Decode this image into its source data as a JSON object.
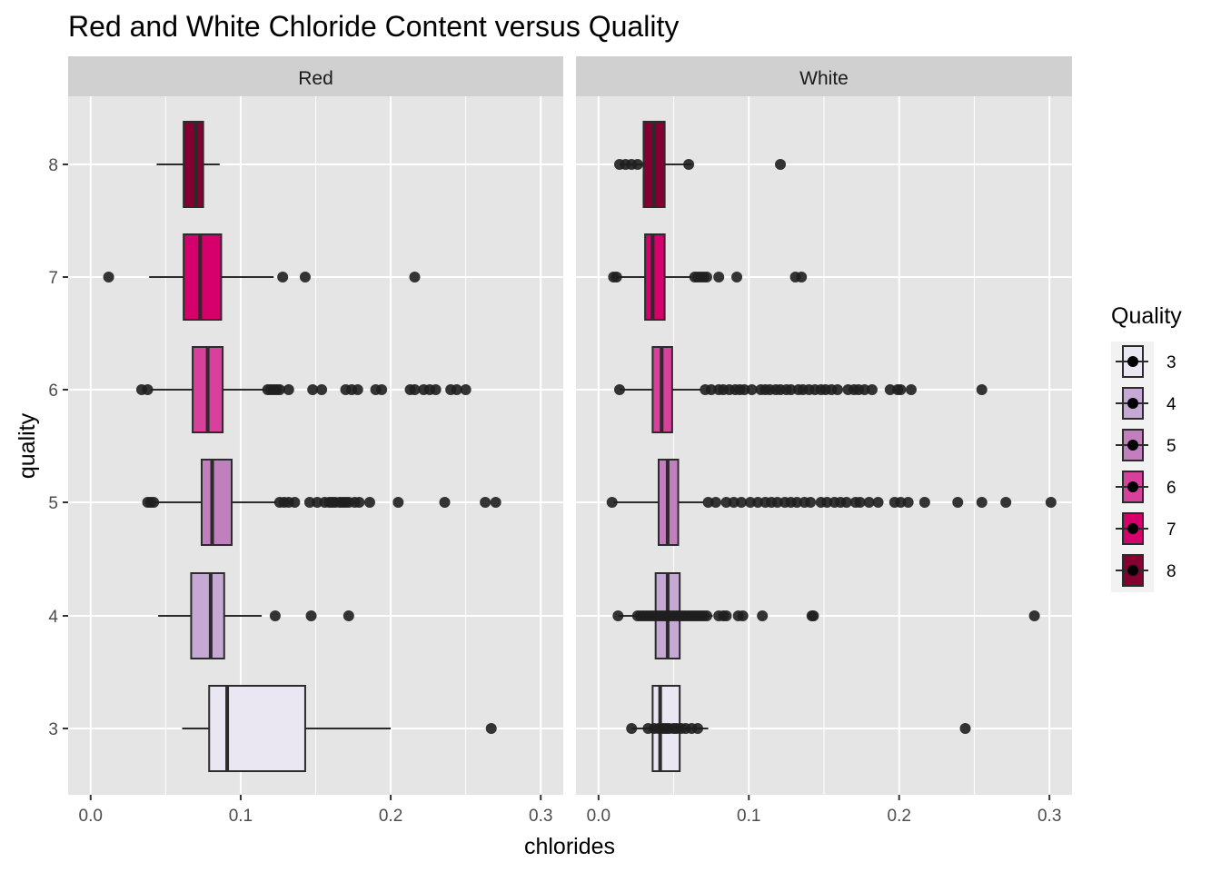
{
  "chart_data": {
    "type": "boxplot",
    "title": "Red and White Chloride Content versus Quality",
    "xlabel": "chlorides",
    "ylabel": "quality",
    "xlim": [
      -0.015,
      0.315
    ],
    "x_ticks": [
      0.0,
      0.1,
      0.2,
      0.3
    ],
    "x_tick_labels": [
      "0.0",
      "0.1",
      "0.2",
      "0.3"
    ],
    "y_categories": [
      "3",
      "4",
      "5",
      "6",
      "7",
      "8"
    ],
    "grid": true,
    "legend": {
      "title": "Quality",
      "position": "right",
      "entries": [
        {
          "label": "3",
          "color": "#ebe7f2"
        },
        {
          "label": "4",
          "color": "#c5a8d3"
        },
        {
          "label": "5",
          "color": "#c27fbd"
        },
        {
          "label": "6",
          "color": "#d8419b"
        },
        {
          "label": "7",
          "color": "#d5006b"
        },
        {
          "label": "8",
          "color": "#830031"
        }
      ]
    },
    "colors": {
      "panel_bg": "#e5e5e5",
      "strip_bg": "#d0d0d0",
      "grid": "#ffffff",
      "box_line": "#2b2b2b",
      "outlier": "#1f1f1f"
    },
    "panels": [
      {
        "name": "Red",
        "boxes": [
          {
            "quality": "3",
            "whisker_low": 0.061,
            "q1": 0.079,
            "median": 0.091,
            "q3": 0.143,
            "whisker_high": 0.2,
            "outliers": [
              0.267
            ]
          },
          {
            "quality": "4",
            "whisker_low": 0.045,
            "q1": 0.067,
            "median": 0.08,
            "q3": 0.089,
            "whisker_high": 0.114,
            "outliers": [
              0.123,
              0.147,
              0.172
            ]
          },
          {
            "quality": "5",
            "whisker_low": 0.039,
            "q1": 0.074,
            "median": 0.081,
            "q3": 0.094,
            "whisker_high": 0.124,
            "outliers": [
              0.038,
              0.04,
              0.042,
              0.126,
              0.129,
              0.132,
              0.136,
              0.146,
              0.151,
              0.156,
              0.159,
              0.161,
              0.163,
              0.166,
              0.168,
              0.17,
              0.172,
              0.176,
              0.179,
              0.186,
              0.205,
              0.236,
              0.263,
              0.27
            ]
          },
          {
            "quality": "6",
            "whisker_low": 0.04,
            "q1": 0.068,
            "median": 0.078,
            "q3": 0.088,
            "whisker_high": 0.117,
            "outliers": [
              0.034,
              0.038,
              0.118,
              0.12,
              0.122,
              0.124,
              0.126,
              0.132,
              0.148,
              0.154,
              0.17,
              0.174,
              0.178,
              0.19,
              0.194,
              0.213,
              0.216,
              0.222,
              0.226,
              0.23,
              0.24,
              0.244,
              0.25
            ]
          },
          {
            "quality": "7",
            "whisker_low": 0.039,
            "q1": 0.062,
            "median": 0.073,
            "q3": 0.087,
            "whisker_high": 0.122,
            "outliers": [
              0.012,
              0.128,
              0.143,
              0.216
            ]
          },
          {
            "quality": "8",
            "whisker_low": 0.044,
            "q1": 0.062,
            "median": 0.07,
            "q3": 0.075,
            "whisker_high": 0.086,
            "outliers": []
          }
        ]
      },
      {
        "name": "White",
        "boxes": [
          {
            "quality": "3",
            "whisker_low": 0.022,
            "q1": 0.036,
            "median": 0.041,
            "q3": 0.054,
            "whisker_high": 0.073,
            "outliers": [
              0.022,
              0.033,
              0.037,
              0.04,
              0.043,
              0.045,
              0.047,
              0.05,
              0.052,
              0.055,
              0.058,
              0.062,
              0.066,
              0.244
            ]
          },
          {
            "quality": "4",
            "whisker_low": 0.013,
            "q1": 0.038,
            "median": 0.046,
            "q3": 0.054,
            "whisker_high": 0.076,
            "outliers": [
              0.013,
              0.026,
              0.028,
              0.03,
              0.032,
              0.034,
              0.036,
              0.038,
              0.04,
              0.042,
              0.044,
              0.046,
              0.048,
              0.05,
              0.052,
              0.054,
              0.056,
              0.058,
              0.06,
              0.062,
              0.064,
              0.066,
              0.068,
              0.07,
              0.072,
              0.08,
              0.083,
              0.085,
              0.093,
              0.096,
              0.109,
              0.142,
              0.143,
              0.29
            ]
          },
          {
            "quality": "5",
            "whisker_low": 0.01,
            "q1": 0.04,
            "median": 0.046,
            "q3": 0.053,
            "whisker_high": 0.07,
            "outliers": [
              0.009,
              0.073,
              0.078,
              0.085,
              0.09,
              0.095,
              0.101,
              0.106,
              0.111,
              0.115,
              0.119,
              0.124,
              0.128,
              0.132,
              0.137,
              0.141,
              0.148,
              0.152,
              0.157,
              0.161,
              0.165,
              0.171,
              0.174,
              0.18,
              0.186,
              0.197,
              0.201,
              0.206,
              0.217,
              0.239,
              0.255,
              0.271,
              0.301
            ]
          },
          {
            "quality": "6",
            "whisker_low": 0.014,
            "q1": 0.036,
            "median": 0.042,
            "q3": 0.049,
            "whisker_high": 0.068,
            "outliers": [
              0.014,
              0.071,
              0.075,
              0.08,
              0.083,
              0.087,
              0.091,
              0.094,
              0.097,
              0.102,
              0.108,
              0.111,
              0.114,
              0.118,
              0.121,
              0.125,
              0.128,
              0.133,
              0.136,
              0.14,
              0.144,
              0.148,
              0.151,
              0.155,
              0.159,
              0.166,
              0.17,
              0.173,
              0.177,
              0.182,
              0.194,
              0.199,
              0.201,
              0.208,
              0.255
            ]
          },
          {
            "quality": "7",
            "whisker_low": 0.012,
            "q1": 0.031,
            "median": 0.036,
            "q3": 0.044,
            "whisker_high": 0.062,
            "outliers": [
              0.01,
              0.012,
              0.064,
              0.066,
              0.068,
              0.07,
              0.072,
              0.08,
              0.092,
              0.131,
              0.135
            ]
          },
          {
            "quality": "8",
            "whisker_low": 0.014,
            "q1": 0.03,
            "median": 0.037,
            "q3": 0.044,
            "whisker_high": 0.062,
            "outliers": [
              0.014,
              0.018,
              0.022,
              0.026,
              0.06,
              0.121
            ]
          }
        ]
      }
    ]
  }
}
